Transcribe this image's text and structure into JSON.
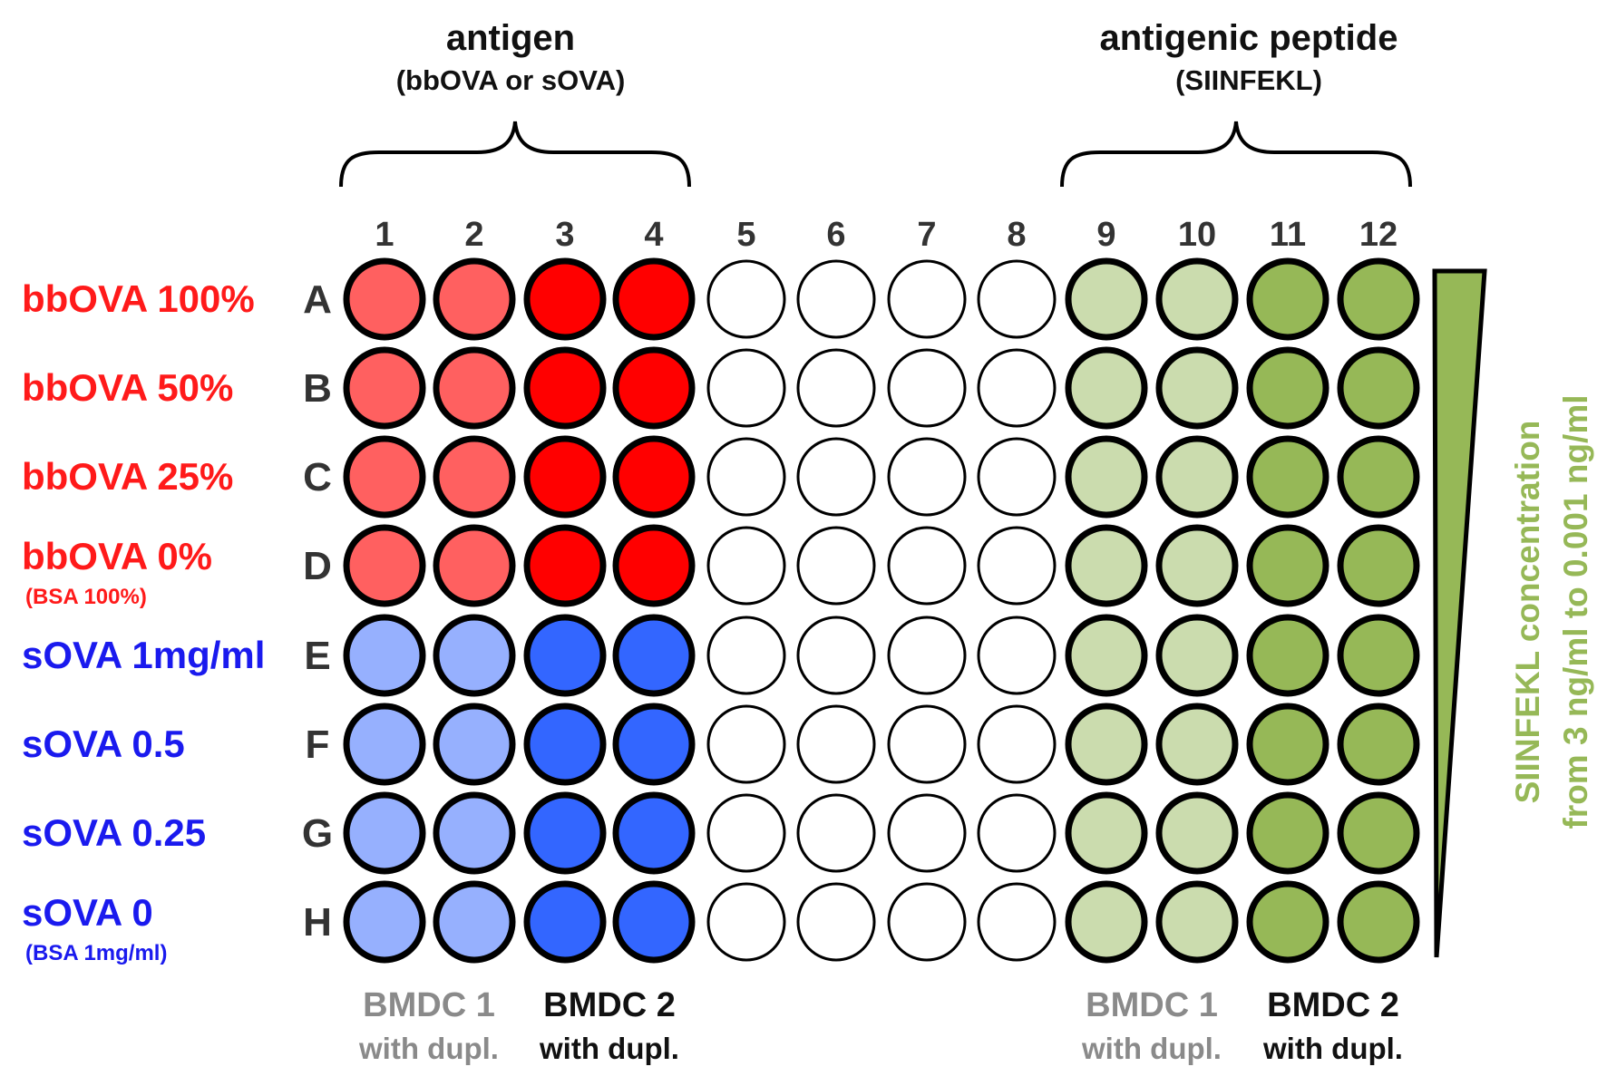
{
  "titles": {
    "left_title": "antigen",
    "left_subtitle": "(bbOVA or sOVA)",
    "right_title": "antigenic peptide",
    "right_subtitle": "(SIINFEKL)"
  },
  "columns": [
    "1",
    "2",
    "3",
    "4",
    "5",
    "6",
    "7",
    "8",
    "9",
    "10",
    "11",
    "12"
  ],
  "rows": [
    {
      "letter": "A",
      "label": "bbOVA 100%",
      "sublabel": "",
      "group": "bbova"
    },
    {
      "letter": "B",
      "label": "bbOVA 50%",
      "sublabel": "",
      "group": "bbova"
    },
    {
      "letter": "C",
      "label": "bbOVA 25%",
      "sublabel": "",
      "group": "bbova"
    },
    {
      "letter": "D",
      "label": "bbOVA 0%",
      "sublabel": "(BSA 100%)",
      "group": "bbova"
    },
    {
      "letter": "E",
      "label": "sOVA 1mg/ml",
      "sublabel": "",
      "group": "sova"
    },
    {
      "letter": "F",
      "label": "sOVA 0.5",
      "sublabel": "",
      "group": "sova"
    },
    {
      "letter": "G",
      "label": "sOVA 0.25",
      "sublabel": "",
      "group": "sova"
    },
    {
      "letter": "H",
      "label": "sOVA 0",
      "sublabel": "(BSA 1mg/ml)",
      "group": "sova"
    }
  ],
  "bottom_labels": [
    {
      "line1": "BMDC 1",
      "line2": "with dupl.",
      "tone": "gray"
    },
    {
      "line1": "BMDC 2",
      "line2": "with dupl.",
      "tone": "black"
    },
    {
      "line1": "BMDC 1",
      "line2": "with dupl.",
      "tone": "gray"
    },
    {
      "line1": "BMDC 2",
      "line2": "with dupl.",
      "tone": "black"
    }
  ],
  "gradient_label": {
    "line1": "SIINFEKL concentration",
    "line2": "from 3 ng/ml to 0.001 ng/ml"
  },
  "colors": {
    "bbova_label": "#ff1a1a",
    "sova_label": "#1a1aee",
    "bbova_light": "#ff6060",
    "bbova_dark": "#ff0000",
    "sova_light": "#96b0fe",
    "sova_dark": "#3366ff",
    "peptide_light": "#cbdcae",
    "peptide_dark": "#96b857",
    "empty": "#ffffff",
    "gray_text": "#8a8a8a",
    "black_text": "#111111",
    "row_letter": "#333333",
    "wedge": "#96b857",
    "gradient_text": "#96b857"
  },
  "well_fills": {
    "bbova": [
      "bbova_light",
      "bbova_light",
      "bbova_dark",
      "bbova_dark",
      "empty",
      "empty",
      "empty",
      "empty",
      "peptide_light",
      "peptide_light",
      "peptide_dark",
      "peptide_dark"
    ],
    "sova": [
      "sova_light",
      "sova_light",
      "sova_dark",
      "sova_dark",
      "empty",
      "empty",
      "empty",
      "empty",
      "peptide_light",
      "peptide_light",
      "peptide_dark",
      "peptide_dark"
    ]
  }
}
